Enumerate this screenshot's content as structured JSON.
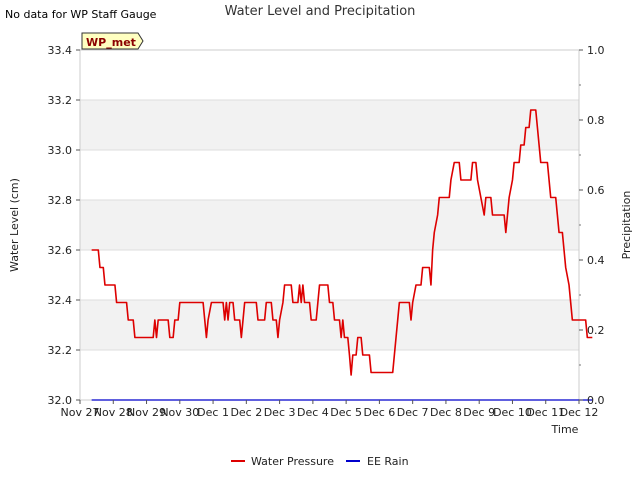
{
  "note": "No data for WP Staff Gauge",
  "badge": "WP_met",
  "chart_data": {
    "type": "line",
    "title": "Water Level and Precipitation",
    "xlabel": "Time",
    "ylabel": "Water Level (cm)",
    "y2label": "Precipitation",
    "x_ticks": [
      "Nov 27",
      "Nov 28",
      "Nov 29",
      "Nov 30",
      "Dec 1",
      "Dec 2",
      "Dec 3",
      "Dec 4",
      "Dec 5",
      "Dec 6",
      "Dec 7",
      "Dec 8",
      "Dec 9",
      "Dec 10",
      "Dec 11",
      "Dec 12"
    ],
    "xlim": [
      0,
      15
    ],
    "ylim": [
      32.0,
      33.4
    ],
    "y_ticks": [
      "32.0",
      "32.2",
      "32.4",
      "32.6",
      "32.8",
      "33.0",
      "33.2",
      "33.4"
    ],
    "y2lim": [
      0.0,
      1.0
    ],
    "y2_ticks": [
      "0.0",
      "0.2",
      "0.4",
      "0.6",
      "0.8",
      "1.0"
    ],
    "grid": true,
    "legend_position": "bottom-center",
    "series": [
      {
        "name": "Water Pressure",
        "color": "#dd0000",
        "axis": "left",
        "points": [
          [
            0.35,
            32.6
          ],
          [
            0.55,
            32.6
          ],
          [
            0.6,
            32.53
          ],
          [
            0.7,
            32.53
          ],
          [
            0.75,
            32.46
          ],
          [
            1.05,
            32.46
          ],
          [
            1.1,
            32.39
          ],
          [
            1.4,
            32.39
          ],
          [
            1.45,
            32.32
          ],
          [
            1.6,
            32.32
          ],
          [
            1.65,
            32.25
          ],
          [
            2.2,
            32.25
          ],
          [
            2.25,
            32.32
          ],
          [
            2.3,
            32.25
          ],
          [
            2.35,
            32.32
          ],
          [
            2.65,
            32.32
          ],
          [
            2.7,
            32.25
          ],
          [
            2.8,
            32.25
          ],
          [
            2.85,
            32.32
          ],
          [
            2.95,
            32.32
          ],
          [
            3.0,
            32.39
          ],
          [
            3.7,
            32.39
          ],
          [
            3.75,
            32.32
          ],
          [
            3.8,
            32.25
          ],
          [
            3.85,
            32.32
          ],
          [
            3.95,
            32.39
          ],
          [
            4.3,
            32.39
          ],
          [
            4.35,
            32.32
          ],
          [
            4.4,
            32.39
          ],
          [
            4.45,
            32.32
          ],
          [
            4.5,
            32.39
          ],
          [
            4.6,
            32.39
          ],
          [
            4.65,
            32.32
          ],
          [
            4.8,
            32.32
          ],
          [
            4.85,
            32.25
          ],
          [
            4.9,
            32.32
          ],
          [
            4.95,
            32.39
          ],
          [
            5.3,
            32.39
          ],
          [
            5.35,
            32.32
          ],
          [
            5.55,
            32.32
          ],
          [
            5.6,
            32.39
          ],
          [
            5.75,
            32.39
          ],
          [
            5.8,
            32.32
          ],
          [
            5.9,
            32.32
          ],
          [
            5.95,
            32.25
          ],
          [
            6.0,
            32.32
          ],
          [
            6.1,
            32.39
          ],
          [
            6.15,
            32.46
          ],
          [
            6.35,
            32.46
          ],
          [
            6.4,
            32.39
          ],
          [
            6.55,
            32.39
          ],
          [
            6.6,
            32.46
          ],
          [
            6.65,
            32.39
          ],
          [
            6.7,
            32.46
          ],
          [
            6.75,
            32.39
          ],
          [
            6.9,
            32.39
          ],
          [
            6.95,
            32.32
          ],
          [
            7.1,
            32.32
          ],
          [
            7.15,
            32.39
          ],
          [
            7.2,
            32.46
          ],
          [
            7.45,
            32.46
          ],
          [
            7.5,
            32.39
          ],
          [
            7.6,
            32.39
          ],
          [
            7.65,
            32.32
          ],
          [
            7.8,
            32.32
          ],
          [
            7.85,
            32.25
          ],
          [
            7.9,
            32.32
          ],
          [
            7.95,
            32.25
          ],
          [
            8.05,
            32.25
          ],
          [
            8.1,
            32.18
          ],
          [
            8.15,
            32.1
          ],
          [
            8.2,
            32.18
          ],
          [
            8.3,
            32.18
          ],
          [
            8.35,
            32.25
          ],
          [
            8.45,
            32.25
          ],
          [
            8.5,
            32.18
          ],
          [
            8.7,
            32.18
          ],
          [
            8.75,
            32.11
          ],
          [
            9.4,
            32.11
          ],
          [
            9.45,
            32.18
          ],
          [
            9.5,
            32.25
          ],
          [
            9.55,
            32.32
          ],
          [
            9.6,
            32.39
          ],
          [
            9.9,
            32.39
          ],
          [
            9.95,
            32.32
          ],
          [
            10.0,
            32.39
          ],
          [
            10.1,
            32.46
          ],
          [
            10.25,
            32.46
          ],
          [
            10.3,
            32.53
          ],
          [
            10.5,
            32.53
          ],
          [
            10.55,
            32.46
          ],
          [
            10.6,
            32.6
          ],
          [
            10.65,
            32.67
          ],
          [
            10.75,
            32.74
          ],
          [
            10.8,
            32.81
          ],
          [
            11.1,
            32.81
          ],
          [
            11.15,
            32.88
          ],
          [
            11.25,
            32.95
          ],
          [
            11.4,
            32.95
          ],
          [
            11.45,
            32.88
          ],
          [
            11.75,
            32.88
          ],
          [
            11.8,
            32.95
          ],
          [
            11.9,
            32.95
          ],
          [
            11.95,
            32.88
          ],
          [
            12.05,
            32.81
          ],
          [
            12.15,
            32.74
          ],
          [
            12.2,
            32.81
          ],
          [
            12.35,
            32.81
          ],
          [
            12.4,
            32.74
          ],
          [
            12.75,
            32.74
          ],
          [
            12.8,
            32.67
          ],
          [
            12.85,
            32.74
          ],
          [
            12.9,
            32.81
          ],
          [
            13.0,
            32.88
          ],
          [
            13.05,
            32.95
          ],
          [
            13.2,
            32.95
          ],
          [
            13.25,
            33.02
          ],
          [
            13.35,
            33.02
          ],
          [
            13.4,
            33.09
          ],
          [
            13.5,
            33.09
          ],
          [
            13.55,
            33.16
          ],
          [
            13.7,
            33.16
          ],
          [
            13.75,
            33.09
          ],
          [
            13.8,
            33.02
          ],
          [
            13.85,
            32.95
          ],
          [
            14.05,
            32.95
          ],
          [
            14.1,
            32.88
          ],
          [
            14.15,
            32.81
          ],
          [
            14.3,
            32.81
          ],
          [
            14.35,
            32.74
          ],
          [
            14.4,
            32.67
          ],
          [
            14.5,
            32.67
          ],
          [
            14.55,
            32.6
          ],
          [
            14.6,
            32.53
          ],
          [
            14.7,
            32.46
          ],
          [
            14.75,
            32.39
          ],
          [
            14.8,
            32.32
          ],
          [
            15.2,
            32.32
          ],
          [
            15.25,
            32.25
          ],
          [
            15.4,
            32.25
          ]
        ]
      },
      {
        "name": "EE Rain",
        "color": "#0000cc",
        "axis": "right",
        "points": [
          [
            0.35,
            0.0
          ],
          [
            15.4,
            0.0
          ]
        ]
      }
    ]
  }
}
